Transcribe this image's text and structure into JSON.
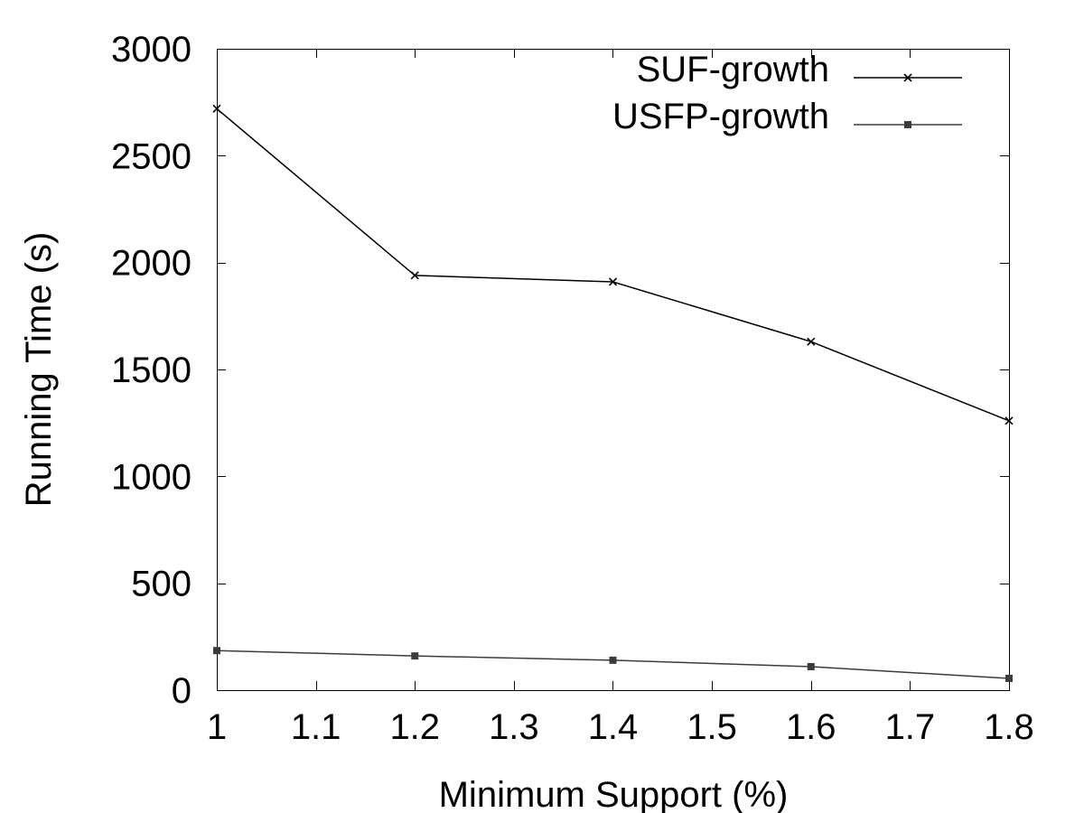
{
  "chart_data": {
    "type": "line",
    "title": "",
    "xlabel": "Minimum Support (%)",
    "ylabel": "Running Time (s)",
    "xlim": [
      1,
      1.8
    ],
    "ylim": [
      0,
      3000
    ],
    "x_ticks": [
      "1",
      "1.1",
      "1.2",
      "1.3",
      "1.4",
      "1.5",
      "1.6",
      "1.7",
      "1.8"
    ],
    "y_ticks": [
      "0",
      "500",
      "1000",
      "1500",
      "2000",
      "2500",
      "3000"
    ],
    "grid": false,
    "legend_position": "top-right",
    "series": [
      {
        "name": "SUF-growth",
        "marker": "x",
        "color": "#000000",
        "x": [
          1,
          1.2,
          1.4,
          1.6,
          1.8
        ],
        "values": [
          2720,
          1940,
          1910,
          1630,
          1260
        ]
      },
      {
        "name": "USFP-growth",
        "marker": "square",
        "color": "#3c3c3c",
        "x": [
          1,
          1.2,
          1.4,
          1.6,
          1.8
        ],
        "values": [
          185,
          160,
          140,
          110,
          55
        ]
      }
    ]
  }
}
